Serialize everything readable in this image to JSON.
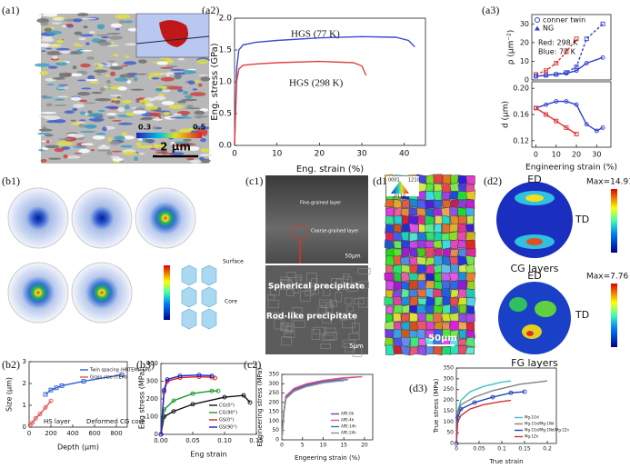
{
  "panel_labels": [
    "(a1)",
    "(a2)",
    "(a3)",
    "(b1)",
    "(b2)",
    "(b3)",
    "(c1)",
    "(c2)",
    "(d1)",
    "(d2)",
    "(d3)"
  ],
  "images": {
    "a1": {
      "scale_bar": "2 μm",
      "colorbar_min": "0.3",
      "colorbar_max": "0.5"
    },
    "b1": {
      "surface": "Surface",
      "core": "Core"
    },
    "c1": {
      "top_labels": [
        "Fine-grained layer",
        "Coarse-grained layer"
      ],
      "top_scale": "50μm",
      "bottom_labels": [
        "Spherical precipitate",
        "Rod-like precipitate"
      ],
      "bottom_scale": "5μm"
    },
    "d1": {
      "scale": "50μm",
      "key": [
        "0001",
        "1210",
        "0110"
      ]
    },
    "d2": {
      "top": {
        "ed": "ED",
        "td": "TD",
        "max": "Max=14.91",
        "caption": "CG layers"
      },
      "bottom": {
        "ed": "ED",
        "td": "TD",
        "max": "Max=7.76",
        "caption": "FG layers"
      }
    }
  },
  "chart_data": [
    {
      "type": "line",
      "ylabel": "Eng. stress (GPa)",
      "xlabel": "Eng. strain (%)",
      "xlim": [
        0,
        45
      ],
      "xticks": [
        0,
        10,
        20,
        30,
        40
      ],
      "ylim": [
        0,
        2.0
      ],
      "yticks": [
        {
          "value": 0,
          "label": "0.0"
        },
        0.5,
        {
          "value": 1,
          "label": "1.0"
        },
        1.5,
        {
          "value": 2,
          "label": "2.0"
        }
      ],
      "series": [
        {
          "name": "HGS (77 K)",
          "color": "#3b4bd0",
          "x": [
            0,
            0.5,
            1,
            2,
            5,
            10,
            20,
            30,
            38,
            41,
            42.5
          ],
          "values": [
            0,
            1.2,
            1.5,
            1.58,
            1.62,
            1.65,
            1.69,
            1.71,
            1.7,
            1.65,
            1.55
          ]
        },
        {
          "name": "HGS (298 K)",
          "color": "#e04040",
          "x": [
            0,
            0.5,
            1,
            2,
            5,
            10,
            20,
            28,
            30,
            31
          ],
          "values": [
            0,
            1.0,
            1.2,
            1.26,
            1.28,
            1.3,
            1.32,
            1.3,
            1.25,
            1.1
          ]
        }
      ]
    },
    {
      "type": "line",
      "ylabel": "ρ (μm⁻²)",
      "xlim": [
        -2,
        37
      ],
      "ylim": [
        0,
        35
      ],
      "yticks": [
        0,
        10,
        20,
        30
      ],
      "legend_entries": [
        "conner twin",
        "NG"
      ],
      "annotations": [
        {
          "text": "Red: 298 K",
          "color": "#e03030"
        },
        {
          "text": "Blue: 77 K",
          "color": "#3040d0"
        }
      ],
      "series": [
        {
          "color": "#e03030",
          "dash": true,
          "marker": "square",
          "x": [
            0,
            5,
            10,
            15,
            20
          ],
          "values": [
            3,
            5,
            9,
            15,
            22
          ]
        },
        {
          "color": "#3040d0",
          "dash": true,
          "marker": "square",
          "x": [
            0,
            5,
            10,
            15,
            20,
            25,
            33
          ],
          "values": [
            2,
            2.5,
            3,
            4,
            7,
            22,
            30
          ]
        },
        {
          "color": "#3040d0",
          "marker": "circle",
          "x": [
            0,
            5,
            10,
            15,
            20,
            25,
            33
          ],
          "values": [
            2,
            2.5,
            3,
            3.5,
            5,
            9,
            12
          ]
        }
      ]
    },
    {
      "type": "line",
      "ylabel": "d (μm)",
      "xlabel": "Engineering strain (%)",
      "xlim": [
        -2,
        37
      ],
      "xticks": [
        0,
        10,
        20,
        30
      ],
      "ylim": [
        0.11,
        0.21
      ],
      "yticks": [
        0.12,
        0.16,
        {
          "value": 0.2,
          "label": "0.20"
        }
      ],
      "series": [
        {
          "color": "#3040d0",
          "marker": "circle",
          "x": [
            0,
            5,
            10,
            15,
            20,
            25,
            30,
            33
          ],
          "values": [
            0.17,
            0.175,
            0.18,
            0.18,
            0.175,
            0.145,
            0.135,
            0.14
          ]
        },
        {
          "color": "#e03030",
          "marker": "square",
          "x": [
            0,
            5,
            10,
            15,
            20
          ],
          "values": [
            0.17,
            0.16,
            0.15,
            0.14,
            0.13
          ]
        }
      ]
    },
    {
      "type": "line",
      "ylabel": "Size (μm)",
      "xlabel": "Depth (μm)",
      "xlim": [
        0,
        900
      ],
      "xticks": [
        0,
        200,
        400,
        600,
        800
      ],
      "ylim": [
        0,
        3
      ],
      "yticks": [
        0,
        1,
        2,
        3
      ],
      "legend": "upper-right",
      "annotations": [
        {
          "text": "HS layer",
          "color": "#111"
        },
        {
          "text": "Deformed CG core",
          "color": "#111"
        }
      ],
      "series": [
        {
          "name": "Twin spacing (HRTEM/TEM)",
          "color": "#2f5fd0",
          "marker": "square",
          "x": [
            150,
            200,
            250,
            300,
            500,
            850
          ],
          "values": [
            1.5,
            1.7,
            1.8,
            1.9,
            2.1,
            2.4
          ]
        },
        {
          "name": "Grain size (TEM)",
          "color": "#e05050",
          "marker": "circle",
          "x": [
            10,
            30,
            60,
            100,
            150,
            200
          ],
          "values": [
            0.1,
            0.2,
            0.4,
            0.6,
            0.9,
            1.2
          ]
        }
      ]
    },
    {
      "type": "line",
      "ylabel": "Eng stress (MPa)",
      "xlabel": "Eng strain",
      "xlim": [
        0,
        0.15
      ],
      "xticks": [
        {
          "value": 0,
          "label": "0.00"
        },
        0.05,
        {
          "value": 0.1,
          "label": "0.10"
        },
        0.15
      ],
      "ylim": [
        0,
        400
      ],
      "yticks": [
        0,
        100,
        200,
        300,
        400
      ],
      "legend": "lower-right",
      "series": [
        {
          "name": "CG(0°)",
          "color": "#111111",
          "marker": "circle",
          "x": [
            0,
            0.005,
            0.02,
            0.05,
            0.1,
            0.13,
            0.14
          ],
          "values": [
            0,
            100,
            130,
            170,
            210,
            220,
            180
          ]
        },
        {
          "name": "CG(90°)",
          "color": "#1a9a2a",
          "marker": "circle",
          "x": [
            0,
            0.005,
            0.02,
            0.05,
            0.08,
            0.09
          ],
          "values": [
            0,
            140,
            190,
            230,
            245,
            245
          ]
        },
        {
          "name": "GS(0°)",
          "color": "#d02020",
          "marker": "circle",
          "x": [
            0,
            0.005,
            0.01,
            0.03,
            0.06,
            0.08,
            0.085
          ],
          "values": [
            0,
            240,
            300,
            320,
            325,
            322,
            318
          ]
        },
        {
          "name": "GS(90°)",
          "color": "#2020d0",
          "marker": "circle",
          "x": [
            0,
            0.005,
            0.01,
            0.03,
            0.06,
            0.08
          ],
          "values": [
            0,
            250,
            310,
            330,
            335,
            330
          ]
        }
      ]
    },
    {
      "type": "line",
      "ylabel": "Engineering stress (MPa)",
      "xlabel": "Engeering strain (%)",
      "xlim": [
        0,
        22
      ],
      "xticks": [
        0,
        5,
        10,
        15,
        20
      ],
      "ylim": [
        0,
        350
      ],
      "yticks": [
        0,
        50,
        100,
        150,
        200,
        250,
        300,
        350
      ],
      "legend": "lower-right",
      "series": [
        {
          "name": "APE-0h",
          "color": "#8040a0",
          "x": [
            0,
            0.5,
            1,
            3,
            6,
            10,
            15,
            18
          ],
          "values": [
            0,
            150,
            230,
            270,
            295,
            315,
            330,
            335
          ]
        },
        {
          "name": "APE-4h",
          "color": "#e0508a",
          "x": [
            0,
            0.5,
            1,
            3,
            6,
            10,
            15,
            19.5
          ],
          "values": [
            0,
            150,
            235,
            275,
            300,
            318,
            332,
            338
          ]
        },
        {
          "name": "APE-14h",
          "color": "#4070c0",
          "x": [
            0,
            0.5,
            1,
            3,
            6,
            10,
            14,
            16
          ],
          "values": [
            0,
            150,
            225,
            265,
            290,
            310,
            320,
            322
          ]
        },
        {
          "name": "APE-24h",
          "color": "#909090",
          "x": [
            0,
            0.5,
            1,
            3,
            6,
            10,
            14,
            15
          ],
          "values": [
            0,
            145,
            220,
            260,
            285,
            305,
            315,
            316
          ]
        }
      ]
    },
    {
      "type": "line",
      "ylabel": "True stress (MPa)",
      "xlabel": "True strain",
      "xlim": [
        0,
        0.22
      ],
      "xticks": [
        0,
        0.05,
        0.1,
        0.15,
        0.2
      ],
      "ylim": [
        0,
        350
      ],
      "yticks": [
        0,
        50,
        100,
        150,
        200,
        250,
        300,
        350
      ],
      "legend": "lower-right",
      "series": [
        {
          "name": "Mg-1Gd",
          "color": "#40c0c0",
          "x": [
            0,
            0.003,
            0.01,
            0.03,
            0.06,
            0.1,
            0.12
          ],
          "values": [
            0,
            150,
            200,
            240,
            265,
            285,
            290
          ]
        },
        {
          "name": "Mg-1Gd/Mg-1Nd",
          "color": "#808080",
          "x": [
            0,
            0.003,
            0.01,
            0.04,
            0.08,
            0.14,
            0.2
          ],
          "values": [
            0,
            140,
            180,
            215,
            245,
            275,
            290
          ]
        },
        {
          "name": "Mg-1Gd/Mg-1Nd/Mg-1Zn",
          "color": "#2040b0",
          "marker": "circle",
          "x": [
            0,
            0.003,
            0.01,
            0.04,
            0.08,
            0.12,
            0.15
          ],
          "values": [
            0,
            120,
            160,
            190,
            215,
            235,
            240
          ]
        },
        {
          "name": "Mg-1Zn",
          "color": "#d03030",
          "x": [
            0,
            0.003,
            0.01,
            0.03,
            0.06,
            0.1,
            0.12
          ],
          "values": [
            0,
            100,
            130,
            160,
            180,
            195,
            200
          ]
        }
      ]
    }
  ]
}
